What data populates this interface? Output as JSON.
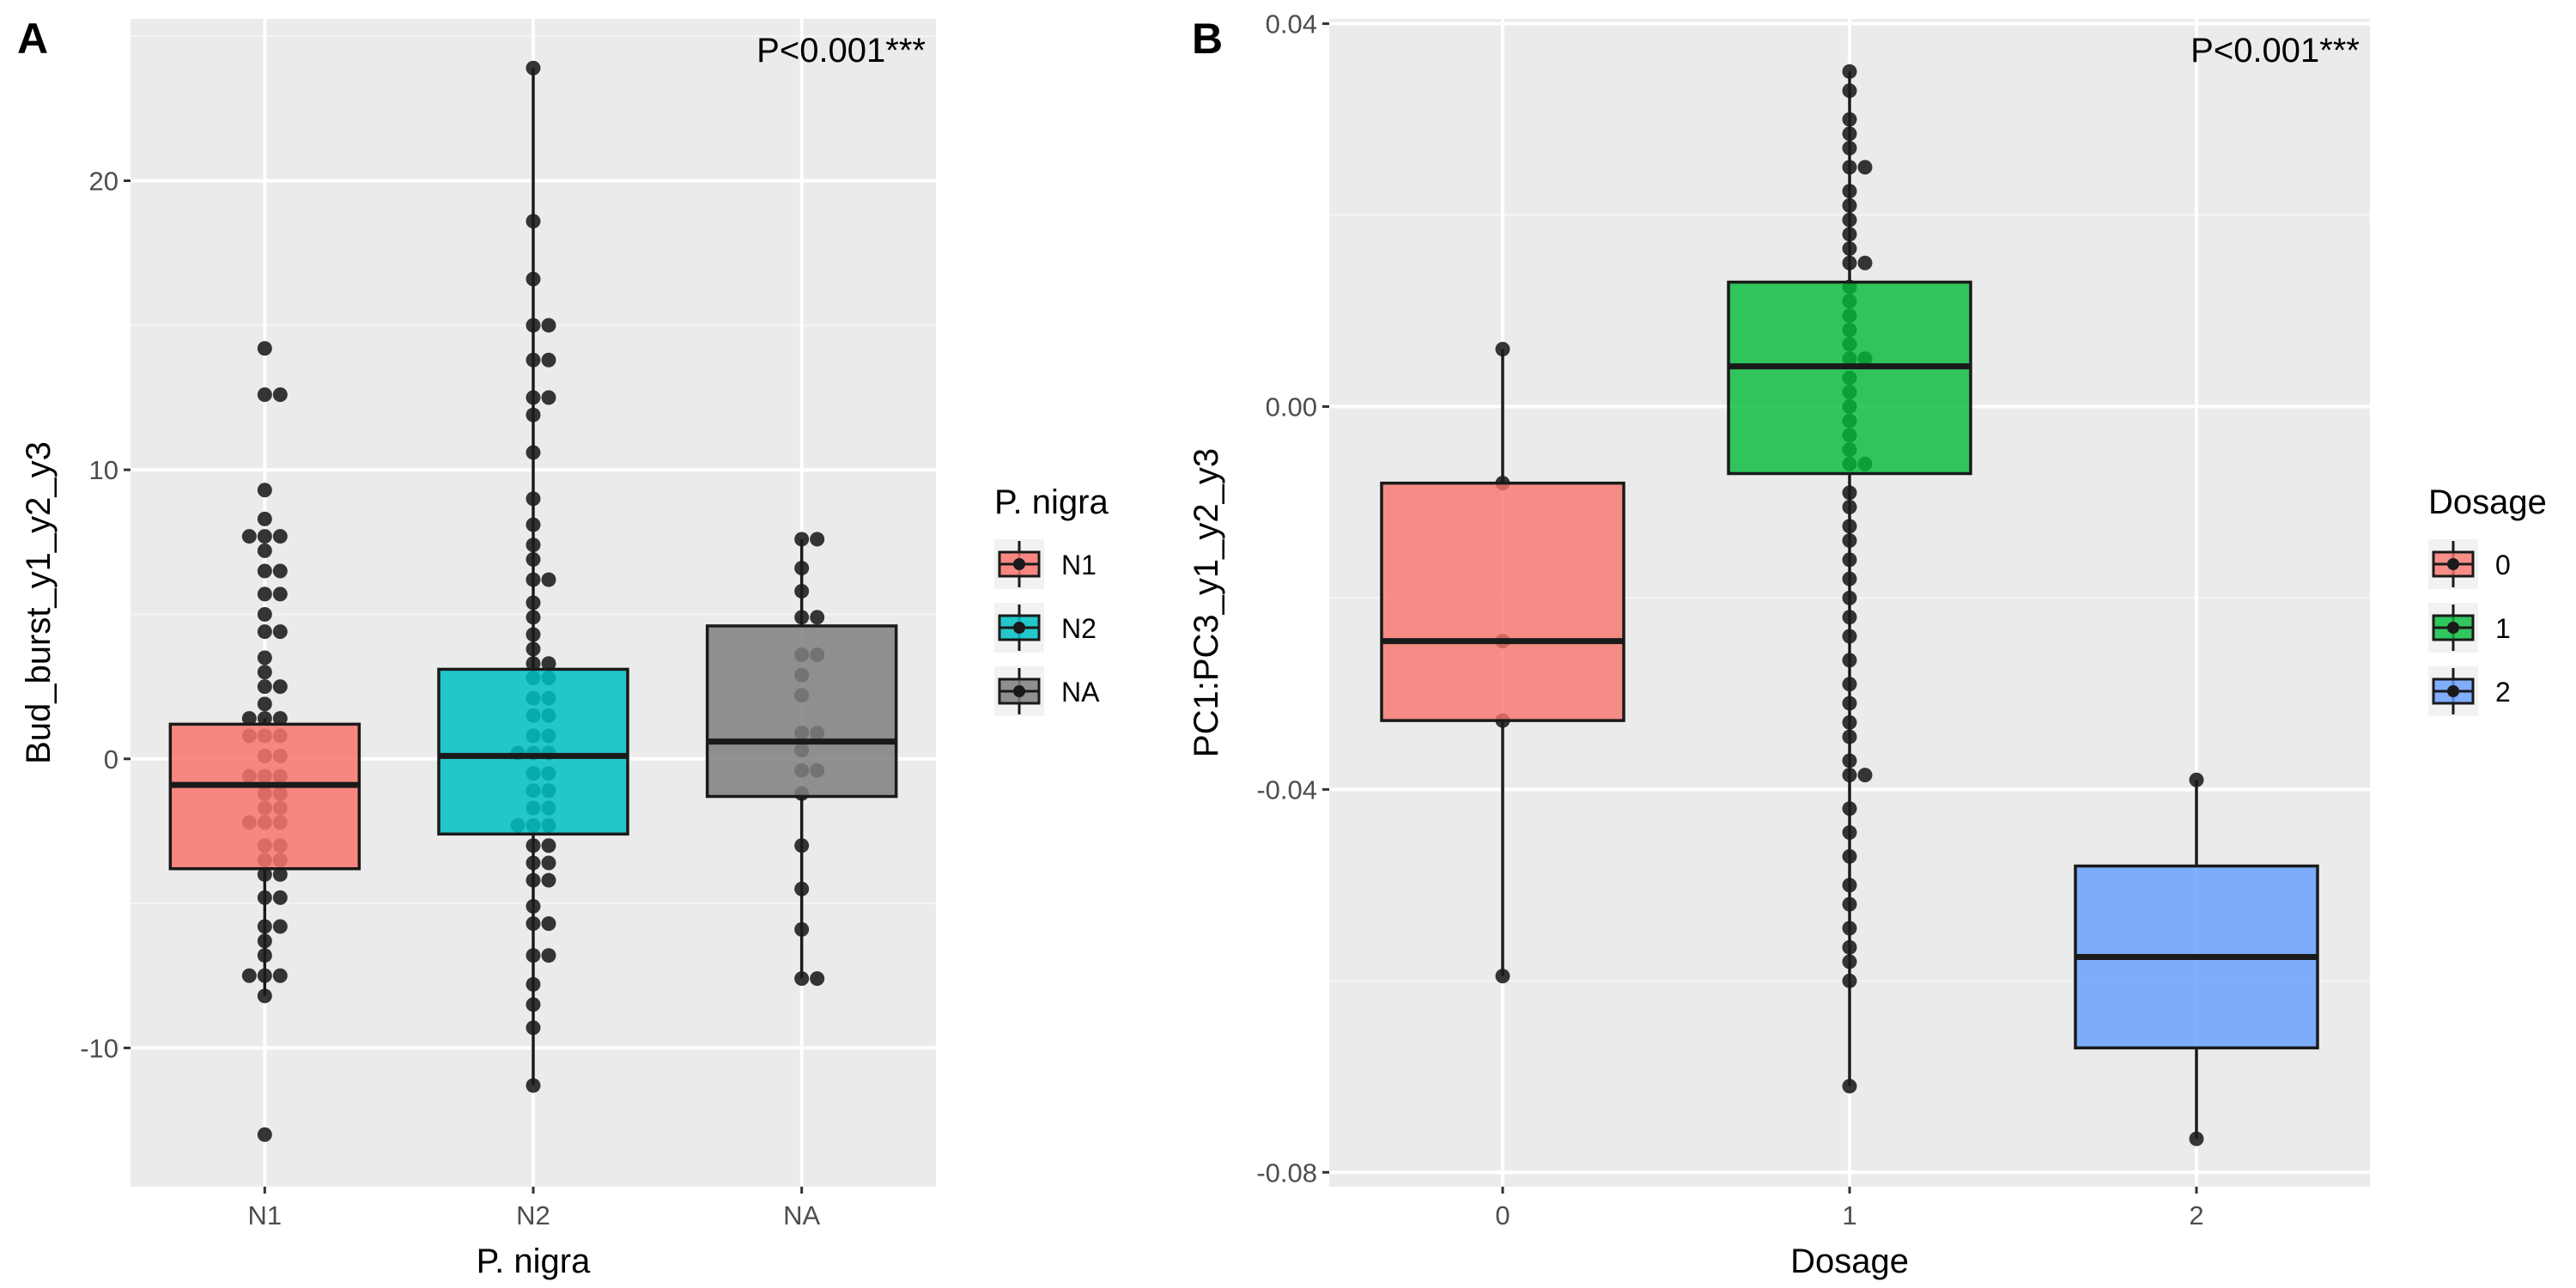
{
  "chart_data": [
    {
      "panel": "A",
      "type": "box",
      "annotation": "P<0.001***",
      "xlabel": "P. nigra",
      "ylabel": "Bud_burst_y1_y2_y3",
      "categories": [
        "N1",
        "N2",
        "NA"
      ],
      "ylim": [
        -14.8,
        25.6
      ],
      "yticks": [
        -10,
        0,
        10,
        20
      ],
      "legend": {
        "title": "P. nigra",
        "position": "right",
        "entries": [
          "N1",
          "N2",
          "NA"
        ]
      },
      "colors": [
        "#F8766D",
        "#00BFC4",
        "#7F7F7F"
      ],
      "boxes": [
        {
          "name": "N1",
          "q1": -3.8,
          "median": -0.9,
          "q3": 1.2,
          "whisker_low": -8.2,
          "whisker_high": 1.4,
          "points": [
            14.2,
            12.6,
            12.6,
            9.3,
            8.3,
            7.7,
            7.7,
            7.6,
            7.2,
            6.5,
            6.2,
            5.7,
            5.4,
            5.0,
            4.4,
            4.1,
            3.5,
            3.0,
            2.5,
            2.5,
            1.9,
            1.4,
            1.3,
            1.0,
            0.8,
            0.8,
            0.5,
            0.1,
            -0.2,
            -0.6,
            -0.6,
            -0.9,
            -1.2,
            -1.4,
            -1.7,
            -2.0,
            -2.2,
            -2.4,
            -2.6,
            -3.0,
            -3.2,
            -3.5,
            -3.8,
            -4.0,
            -4.4,
            -4.8,
            -5.1,
            -5.8,
            -5.8,
            -6.3,
            -6.8,
            -7.5,
            -7.5,
            -7.9,
            -8.2,
            -13.0
          ]
        },
        {
          "name": "N2",
          "q1": -2.6,
          "median": 0.1,
          "q3": 3.1,
          "whisker_low": -11.3,
          "whisker_high": 23.9,
          "points": [
            23.9,
            18.6,
            16.6,
            15.0,
            14.7,
            13.8,
            13.6,
            12.5,
            12.1,
            11.9,
            10.6,
            9.0,
            8.1,
            7.4,
            6.9,
            6.2,
            6.1,
            5.4,
            4.9,
            4.3,
            3.8,
            3.3,
            3.0,
            2.8,
            2.4,
            2.1,
            1.9,
            1.5,
            1.2,
            0.8,
            0.5,
            0.2,
            0.1,
            -0.2,
            -0.5,
            -0.8,
            -1.1,
            -1.4,
            -1.7,
            -2.0,
            -2.3,
            -2.6,
            -2.6,
            -3.0,
            -3.3,
            -3.6,
            -3.9,
            -4.2,
            -4.6,
            -5.1,
            -5.7,
            -6.1,
            -6.8,
            -7.2,
            -7.8,
            -8.5,
            -9.3,
            -11.3
          ]
        },
        {
          "name": "NA",
          "q1": -1.3,
          "median": 0.6,
          "q3": 4.6,
          "whisker_low": -7.6,
          "whisker_high": 7.6,
          "points": [
            7.6,
            7.3,
            6.6,
            5.8,
            4.9,
            4.9,
            3.6,
            3.3,
            2.9,
            2.2,
            0.9,
            0.7,
            0.3,
            -0.4,
            -0.8,
            -1.2,
            -3.0,
            -4.5,
            -5.9,
            -7.6,
            -7.6
          ]
        }
      ]
    },
    {
      "panel": "B",
      "type": "box",
      "annotation": "P<0.001***",
      "xlabel": "Dosage",
      "ylabel": "PC1:PC3_y1_y2_y3",
      "categories": [
        "0",
        "1",
        "2"
      ],
      "ylim": [
        -0.0815,
        0.0405
      ],
      "yticks": [
        -0.08,
        -0.04,
        0.0,
        0.04
      ],
      "ytick_labels": [
        "-0.08",
        "-0.04",
        "0.00",
        "0.04"
      ],
      "legend": {
        "title": "Dosage",
        "position": "right",
        "entries": [
          "0",
          "1",
          "2"
        ]
      },
      "colors": [
        "#F8766D",
        "#00BA38",
        "#619CFF"
      ],
      "boxes": [
        {
          "name": "0",
          "q1": -0.0328,
          "median": -0.0245,
          "q3": -0.008,
          "whisker_low": -0.0595,
          "whisker_high": 0.006,
          "points": [
            0.006,
            -0.008,
            -0.0245,
            -0.0328,
            -0.0595
          ]
        },
        {
          "name": "1",
          "q1": -0.007,
          "median": 0.0042,
          "q3": 0.013,
          "whisker_low": -0.071,
          "whisker_high": 0.035,
          "points": [
            0.035,
            0.033,
            0.03,
            0.0285,
            0.027,
            0.025,
            0.024,
            0.0225,
            0.021,
            0.0195,
            0.018,
            0.0165,
            0.015,
            0.0138,
            0.0125,
            0.011,
            0.0095,
            0.008,
            0.0065,
            0.005,
            0.0042,
            0.003,
            0.0015,
            0.0,
            -0.0015,
            -0.003,
            -0.0045,
            -0.006,
            -0.007,
            -0.009,
            -0.0105,
            -0.0125,
            -0.014,
            -0.016,
            -0.018,
            -0.02,
            -0.022,
            -0.024,
            -0.0265,
            -0.029,
            -0.031,
            -0.033,
            -0.0345,
            -0.037,
            -0.0385,
            -0.0395,
            -0.042,
            -0.0445,
            -0.047,
            -0.05,
            -0.052,
            -0.0545,
            -0.0565,
            -0.058,
            -0.06,
            -0.071
          ]
        },
        {
          "name": "2",
          "q1": -0.067,
          "median": -0.0575,
          "q3": -0.048,
          "whisker_low": -0.0765,
          "whisker_high": -0.039,
          "points": [
            -0.039,
            -0.0765
          ]
        }
      ]
    }
  ]
}
